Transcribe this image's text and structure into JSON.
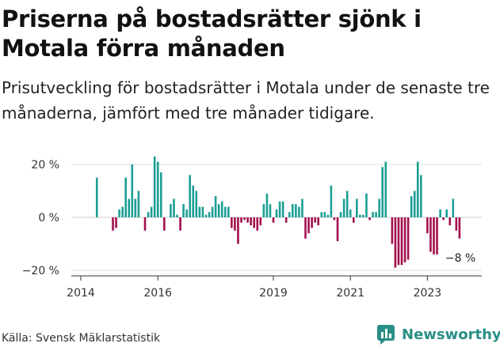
{
  "title": "Priserna på bostadsrätter sjönk i Motala förra månaden",
  "subtitle": "Prisutveckling för bostadsrätter i Motala under de senaste tre månaderna, jämfört med tre månader tidigare.",
  "source": "Källa: Svensk Mäklarstatistik",
  "brand": "Newsworthy",
  "colors": {
    "positive": "#1b9e93",
    "negative": "#a30f4e",
    "brand": "#2a8f86",
    "grid": "#dddddd"
  },
  "chart_data": {
    "type": "bar",
    "title": "Priserna på bostadsrätter sjönk i Motala förra månaden",
    "xlabel": "",
    "ylabel": "",
    "ylim": [
      -22,
      25
    ],
    "y_ticks": [
      20,
      0,
      -20
    ],
    "y_tick_labels": [
      "20 %",
      "0 %",
      "−20 %"
    ],
    "x_ticks": [
      2014,
      2016,
      2019,
      2021,
      2023
    ],
    "x_tick_labels": [
      "2014",
      "2016",
      "2019",
      "2021",
      "2023"
    ],
    "last_label": "−8 %",
    "series": [
      {
        "name": "Prisutveckling (%)",
        "start": "2014-06",
        "values": [
          15,
          0,
          0,
          0,
          0,
          -5,
          -4,
          3,
          4,
          15,
          7,
          20,
          7,
          10,
          0,
          -5,
          2,
          4,
          23,
          21,
          17,
          -5,
          0,
          5,
          7,
          1,
          -5,
          5,
          3,
          16,
          12,
          10,
          4,
          4,
          1,
          2,
          4,
          8,
          5,
          6,
          4,
          4,
          -4,
          -5,
          -10,
          -2,
          -1,
          -2,
          -3,
          -4,
          -5,
          -3,
          5,
          9,
          5,
          -2,
          3,
          6,
          6,
          -2,
          2,
          5,
          5,
          4,
          7,
          -8,
          -6,
          -4,
          -2,
          -3,
          2,
          2,
          1,
          12,
          -1,
          -9,
          2,
          7,
          10,
          3,
          -2,
          7,
          1,
          1,
          9,
          -1,
          2,
          2,
          7,
          19,
          21,
          0,
          -10,
          -19,
          -18,
          -18,
          -17,
          -16,
          8,
          10,
          21,
          16,
          0,
          -6,
          -13,
          -14,
          -14,
          3,
          -1,
          3,
          -3,
          7,
          -5,
          -8
        ]
      }
    ]
  }
}
